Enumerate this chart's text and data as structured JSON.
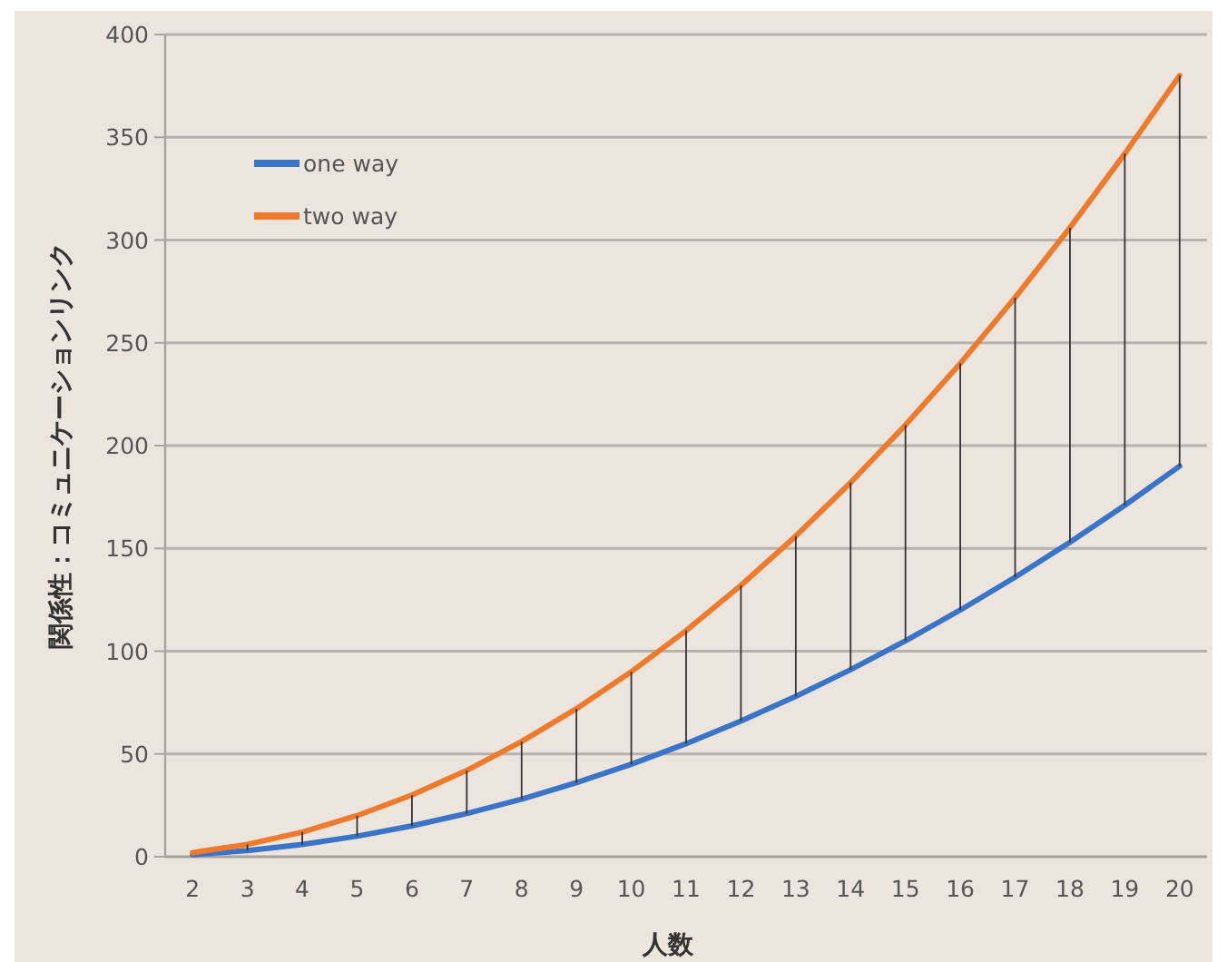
{
  "chart_data": {
    "type": "line",
    "xlabel": "人数",
    "ylabel": "関係性：コミュニケーションリンク",
    "categories": [
      "2",
      "3",
      "4",
      "5",
      "6",
      "7",
      "8",
      "9",
      "10",
      "11",
      "12",
      "13",
      "14",
      "15",
      "16",
      "17",
      "18",
      "19",
      "20"
    ],
    "series": [
      {
        "name": "one way",
        "color": "#3a74c8",
        "values": [
          1,
          3,
          6,
          10,
          15,
          21,
          28,
          36,
          45,
          55,
          66,
          78,
          91,
          105,
          120,
          136,
          153,
          171,
          190
        ],
        "errors": [
          null,
          [
            3,
            6
          ],
          [
            6,
            12
          ],
          [
            10,
            20
          ],
          [
            15,
            30
          ],
          [
            21,
            42
          ],
          [
            28,
            56
          ],
          [
            36,
            72
          ],
          [
            45,
            90
          ],
          [
            55,
            110
          ],
          [
            66,
            132
          ],
          [
            78,
            156
          ],
          [
            91,
            182
          ],
          [
            105,
            210
          ],
          [
            120,
            240
          ],
          [
            136,
            272
          ],
          [
            153,
            306
          ],
          [
            171,
            342
          ],
          [
            190,
            380
          ]
        ]
      },
      {
        "name": "two way",
        "color": "#ee7a2c",
        "values": [
          2,
          6,
          12,
          20,
          30,
          42,
          56,
          72,
          90,
          110,
          132,
          156,
          182,
          210,
          240,
          272,
          306,
          342,
          380
        ]
      }
    ],
    "ylim": [
      0,
      400
    ],
    "yticks": [
      0,
      50,
      100,
      150,
      200,
      250,
      300,
      350,
      400
    ],
    "grid": "y",
    "legend": "top left",
    "marker": "none",
    "line_style": "solid"
  }
}
